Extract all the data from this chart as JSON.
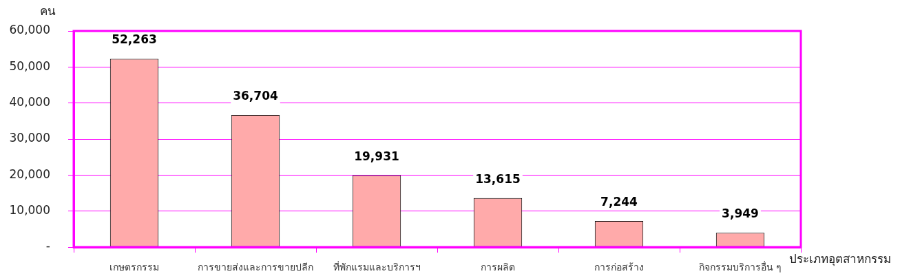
{
  "chart_data": {
    "type": "bar",
    "xlabel": "ประเภทอุตสาหกรรม",
    "ylabel": "คน",
    "categories": [
      "เกษตรกรรม",
      "การขายส่งและการขายปลีก",
      "ที่พักแรมและบริการฯ",
      "การผลิต",
      "การก่อสร้าง",
      "กิจกรรมบริการอื่น ๆ"
    ],
    "values": [
      52263,
      36704,
      19931,
      13615,
      7244,
      3949
    ],
    "value_labels": [
      "52,263",
      "36,704",
      "19,931",
      "13,615",
      "7,244",
      "3,949"
    ],
    "color": "#ffaaaa",
    "ylim": [
      0,
      60000
    ],
    "yticks": [
      {
        "value": 0,
        "label": "-"
      },
      {
        "value": 10000,
        "label": "10,000"
      },
      {
        "value": 20000,
        "label": "20,000"
      },
      {
        "value": 30000,
        "label": "30,000"
      },
      {
        "value": 40000,
        "label": "40,000"
      },
      {
        "value": 50000,
        "label": "50,000"
      },
      {
        "value": 60000,
        "label": "60,000"
      }
    ],
    "grid": "y"
  }
}
